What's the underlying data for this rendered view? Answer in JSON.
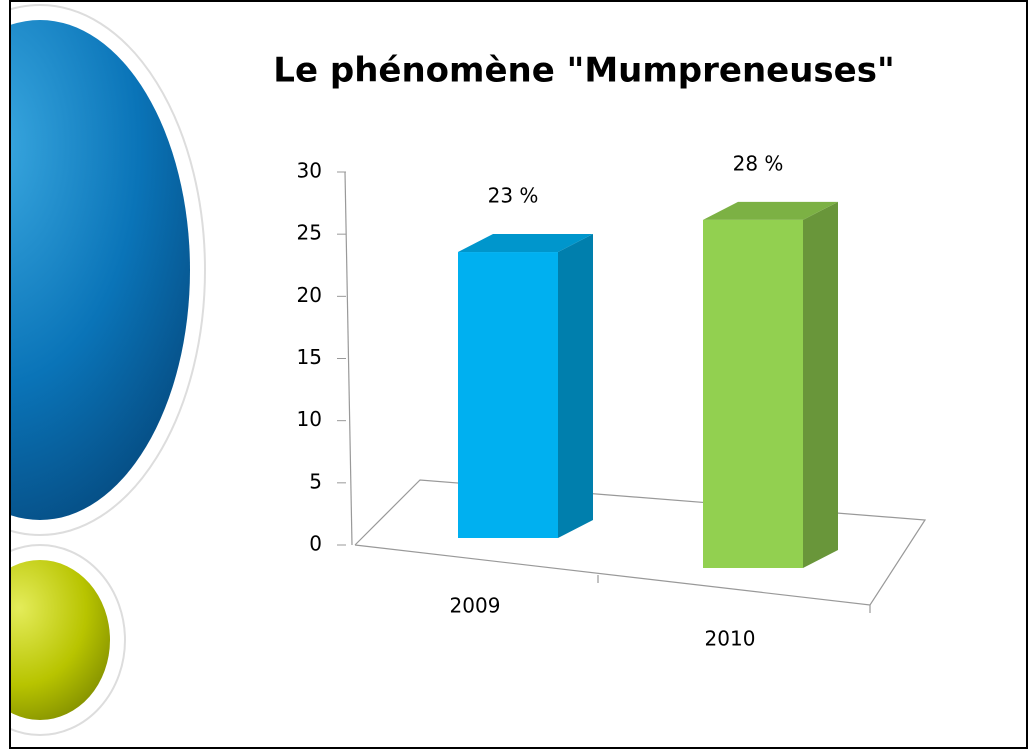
{
  "chart_data": {
    "type": "bar3d",
    "title": "Le phénomène \"Mumpreneuses\"",
    "categories": [
      "2009",
      "2010"
    ],
    "values": [
      23,
      28
    ],
    "value_labels": [
      "23 %",
      "28 %"
    ],
    "colors": [
      "#00b0f0",
      "#92d050"
    ],
    "ylim": [
      0,
      30
    ],
    "yticks": [
      0,
      5,
      10,
      15,
      20,
      25,
      30
    ]
  }
}
